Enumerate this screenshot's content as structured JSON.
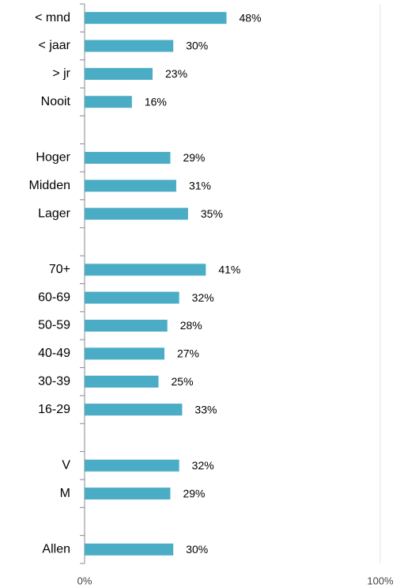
{
  "chart_data": {
    "type": "barh",
    "categories": [
      "< mnd",
      "< jaar",
      "> jr",
      "Nooit",
      null,
      "Hoger",
      "Midden",
      "Lager",
      null,
      "70+",
      "60-69",
      "50-59",
      "40-49",
      "30-39",
      "16-29",
      null,
      "V",
      "M",
      null,
      "Allen"
    ],
    "values": [
      48,
      30,
      23,
      16,
      null,
      29,
      31,
      35,
      null,
      41,
      32,
      28,
      27,
      25,
      33,
      null,
      32,
      29,
      null,
      30
    ],
    "value_labels": [
      "48%",
      "30%",
      "23%",
      "16%",
      null,
      "29%",
      "31%",
      "35%",
      null,
      "41%",
      "32%",
      "28%",
      "27%",
      "25%",
      "33%",
      null,
      "32%",
      "29%",
      null,
      "30%"
    ],
    "color": "#4bacc6",
    "xlim": [
      0,
      100
    ],
    "xticks": [
      {
        "value": 0,
        "label": "0%"
      },
      {
        "value": 100,
        "label": "100%"
      }
    ],
    "grid": true
  }
}
